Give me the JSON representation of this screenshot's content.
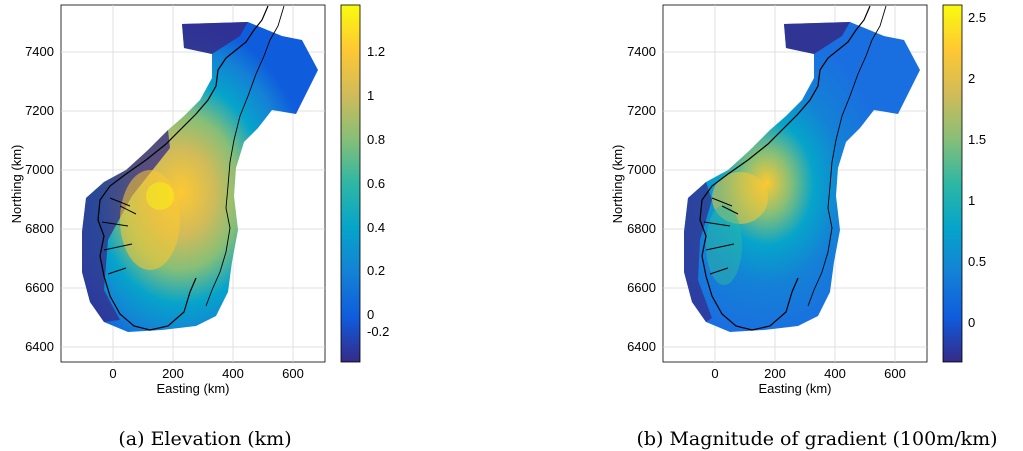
{
  "panels": [
    {
      "caption": "(a) Elevation (km)",
      "x_label": "Easting (km)",
      "y_label": "Northing (km)",
      "x_ticks": [
        "0",
        "200",
        "400",
        "600"
      ],
      "y_ticks": [
        "6400",
        "6600",
        "6800",
        "7000",
        "7200",
        "7400"
      ],
      "colorbar": {
        "min": -0.28,
        "max": 1.38,
        "tick_values": [
          -0.2,
          0,
          0.2,
          0.4,
          0.6,
          0.8,
          1,
          1.2
        ],
        "tick_labels": [
          "-0.2",
          "0",
          "0.2",
          "0.4",
          "0.6",
          "0.8",
          "1",
          "1.2"
        ]
      }
    },
    {
      "caption": "(b) Magnitude of gradient (100m/km)",
      "x_label": "Easting (km)",
      "y_label": "Northing (km)",
      "x_ticks": [
        "0",
        "200",
        "400",
        "600"
      ],
      "y_ticks": [
        "6400",
        "6600",
        "6800",
        "7000",
        "7200",
        "7400"
      ],
      "colorbar": {
        "min": -0.35,
        "max": 2.58,
        "tick_values": [
          0,
          0.5,
          1,
          1.5,
          2,
          2.5
        ],
        "tick_labels": [
          "0",
          "0.5",
          "1",
          "1.5",
          "2",
          "2.5"
        ]
      }
    }
  ],
  "colormap": [
    "#352a87",
    "#0f5cdd",
    "#1481d6",
    "#06a4ca",
    "#2eb7a4",
    "#87bf77",
    "#d1bb59",
    "#fec832",
    "#f9fb0e"
  ]
}
